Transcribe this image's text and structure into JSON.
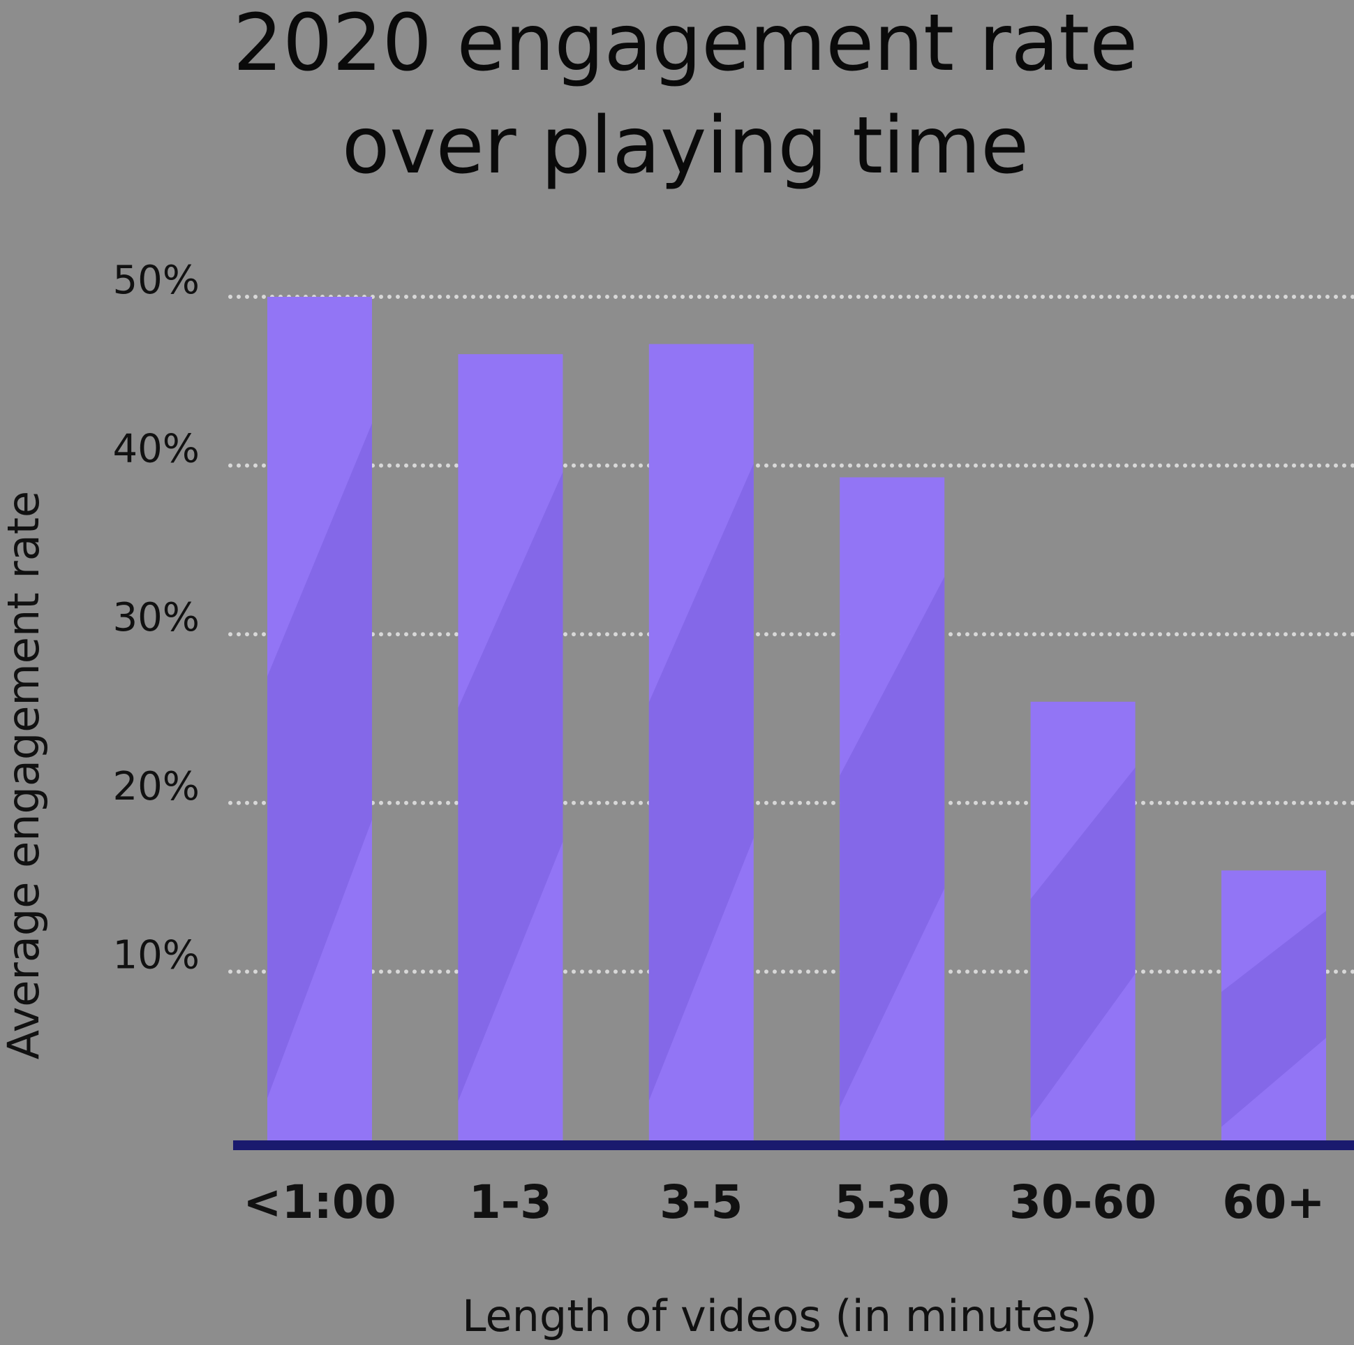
{
  "chart_data": {
    "type": "bar",
    "title_lines": [
      "2020 engagement rate",
      "over playing time"
    ],
    "xlabel": "Length of videos (in minutes)",
    "ylabel": "Average  engagement rate",
    "categories": [
      "<1:00",
      "1-3",
      "3-5",
      "5-30",
      "30-60",
      "60+"
    ],
    "values": [
      50,
      46.6,
      47.2,
      39.3,
      26,
      16
    ],
    "ylim": [
      0,
      50
    ],
    "y_ticks": [
      10,
      20,
      30,
      40,
      50
    ],
    "y_tick_labels": [
      "10%",
      "20%",
      "30%",
      "40%",
      "50%"
    ],
    "grid": "horizontal-dotted",
    "colors": {
      "background": "#8d8d8d",
      "bar_light": "#9275f5",
      "bar_dark": "#8468e8",
      "baseline": "#1a1a6e",
      "grid": "#d8d8d8"
    }
  }
}
